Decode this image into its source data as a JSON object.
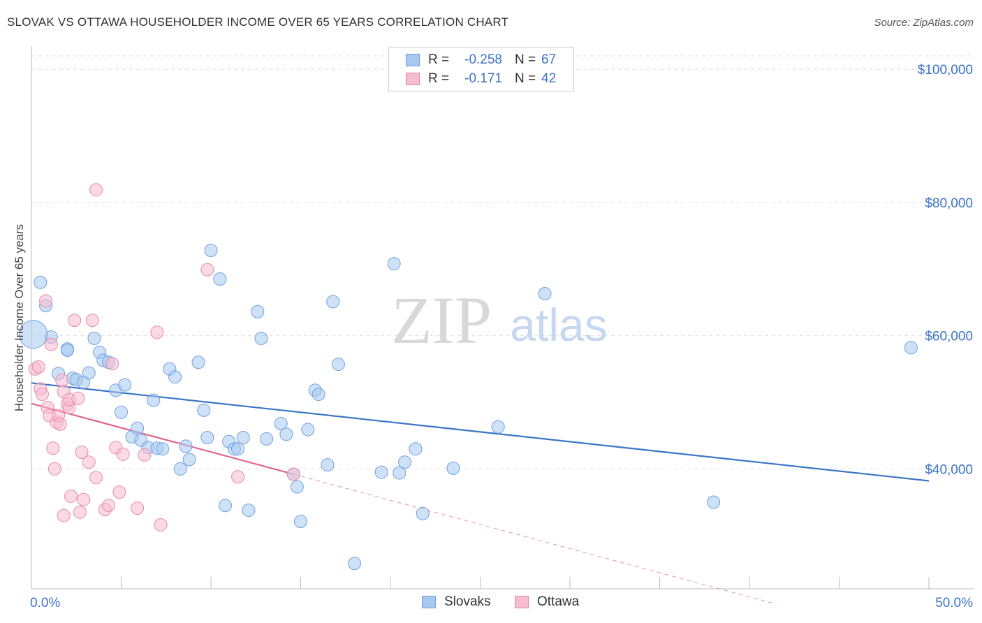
{
  "title": "SLOVAK VS OTTAWA HOUSEHOLDER INCOME OVER 65 YEARS CORRELATION CHART",
  "source": "Source: ZipAtlas.com",
  "watermark": {
    "zip": "ZIP",
    "atlas": "atlas"
  },
  "legend_top": [
    {
      "r_label": "R =",
      "r_value": "-0.258",
      "n_label": "N =",
      "n_value": "67",
      "color": "#a8c8f0",
      "border": "#6fa0e0"
    },
    {
      "r_label": "R =",
      "r_value": "-0.171",
      "n_label": "N =",
      "n_value": "42",
      "color": "#f7bcd0",
      "border": "#e889a8"
    }
  ],
  "legend_bottom": [
    {
      "label": "Slovaks",
      "color": "#a8c8f0",
      "border": "#6fa0e0"
    },
    {
      "label": "Ottawa",
      "color": "#f7bcd0",
      "border": "#e889a8"
    }
  ],
  "chart_data": {
    "type": "scatter",
    "title": "SLOVAK VS OTTAWA HOUSEHOLDER INCOME OVER 65 YEARS CORRELATION CHART",
    "xlabel": "",
    "ylabel": "Householder Income Over 65 years",
    "xlim": [
      0,
      50
    ],
    "ylim": [
      22000,
      102000
    ],
    "x_tick_labels": [
      "0.0%",
      "50.0%"
    ],
    "y_ticks": [
      40000,
      60000,
      80000,
      100000
    ],
    "y_tick_labels": [
      "$40,000",
      "$60,000",
      "$80,000",
      "$100,000"
    ],
    "grid": true,
    "legend_position": "top-center",
    "colors": {
      "Slovaks": "#3b74c6",
      "Ottawa": "#e0678f",
      "slovaks_fill": "#a8c8f0",
      "ottawa_fill": "#f7bcd0"
    },
    "series": [
      {
        "name": "Slovaks",
        "trend": {
          "x0": 0,
          "y0": 52900,
          "x1": 50,
          "y1": 38200
        },
        "points": [
          [
            0.5,
            68000
          ],
          [
            0.8,
            64500
          ],
          [
            1.1,
            59800
          ],
          [
            1.5,
            54300
          ],
          [
            2.0,
            58000
          ],
          [
            2.0,
            57800
          ],
          [
            2.3,
            53600
          ],
          [
            2.5,
            53400
          ],
          [
            2.9,
            53000
          ],
          [
            3.2,
            54400
          ],
          [
            3.5,
            59600
          ],
          [
            3.8,
            57500
          ],
          [
            4.0,
            56300
          ],
          [
            4.3,
            56000
          ],
          [
            4.7,
            51800
          ],
          [
            5.0,
            48500
          ],
          [
            5.2,
            52600
          ],
          [
            5.6,
            44800
          ],
          [
            5.9,
            46100
          ],
          [
            6.1,
            44300
          ],
          [
            6.5,
            43200
          ],
          [
            6.8,
            50300
          ],
          [
            7.0,
            43100
          ],
          [
            7.3,
            43000
          ],
          [
            7.7,
            55000
          ],
          [
            8.0,
            53800
          ],
          [
            8.3,
            40000
          ],
          [
            8.6,
            43400
          ],
          [
            8.8,
            41400
          ],
          [
            9.3,
            56000
          ],
          [
            9.6,
            48800
          ],
          [
            9.8,
            44700
          ],
          [
            10.0,
            72800
          ],
          [
            10.5,
            68500
          ],
          [
            10.8,
            34500
          ],
          [
            11.0,
            44100
          ],
          [
            11.3,
            43000
          ],
          [
            11.5,
            43000
          ],
          [
            11.8,
            44700
          ],
          [
            12.1,
            33800
          ],
          [
            12.6,
            63600
          ],
          [
            12.8,
            59600
          ],
          [
            13.1,
            44500
          ],
          [
            13.9,
            46800
          ],
          [
            14.2,
            45200
          ],
          [
            14.6,
            39200
          ],
          [
            14.8,
            37300
          ],
          [
            15.0,
            32100
          ],
          [
            15.4,
            45900
          ],
          [
            15.8,
            51800
          ],
          [
            16.0,
            51200
          ],
          [
            16.5,
            40600
          ],
          [
            16.8,
            65100
          ],
          [
            17.1,
            55700
          ],
          [
            18.0,
            25800
          ],
          [
            19.5,
            39500
          ],
          [
            20.2,
            70800
          ],
          [
            20.5,
            39400
          ],
          [
            20.8,
            41000
          ],
          [
            21.4,
            43000
          ],
          [
            21.8,
            33300
          ],
          [
            23.5,
            40100
          ],
          [
            26.0,
            46300
          ],
          [
            28.6,
            66300
          ],
          [
            38.0,
            35000
          ],
          [
            49.0,
            58200
          ],
          [
            0.1,
            60200
          ]
        ]
      },
      {
        "name": "Ottawa",
        "trend": {
          "x0": 0,
          "y0": 49800,
          "x1": 14.6,
          "y1": 39200,
          "dash_x1": 41.5,
          "dash_y1": 19700
        },
        "points": [
          [
            0.2,
            55000
          ],
          [
            0.4,
            55300
          ],
          [
            0.5,
            52000
          ],
          [
            0.6,
            51200
          ],
          [
            0.8,
            65200
          ],
          [
            0.9,
            49200
          ],
          [
            1.0,
            48000
          ],
          [
            1.1,
            58700
          ],
          [
            1.2,
            43100
          ],
          [
            1.3,
            40000
          ],
          [
            1.4,
            47000
          ],
          [
            1.5,
            48000
          ],
          [
            1.6,
            46700
          ],
          [
            1.7,
            53300
          ],
          [
            1.8,
            51600
          ],
          [
            1.8,
            33000
          ],
          [
            2.0,
            49700
          ],
          [
            2.1,
            49200
          ],
          [
            2.1,
            50400
          ],
          [
            2.2,
            35900
          ],
          [
            2.4,
            62300
          ],
          [
            2.6,
            50600
          ],
          [
            2.7,
            33500
          ],
          [
            2.8,
            42500
          ],
          [
            2.9,
            35400
          ],
          [
            3.2,
            41000
          ],
          [
            3.4,
            62300
          ],
          [
            3.6,
            81900
          ],
          [
            3.6,
            38700
          ],
          [
            4.1,
            33900
          ],
          [
            4.3,
            34500
          ],
          [
            4.5,
            55800
          ],
          [
            4.7,
            43200
          ],
          [
            4.9,
            36500
          ],
          [
            5.1,
            42200
          ],
          [
            5.9,
            34100
          ],
          [
            6.3,
            42100
          ],
          [
            7.0,
            60500
          ],
          [
            7.2,
            31600
          ],
          [
            9.8,
            69900
          ],
          [
            11.5,
            38800
          ],
          [
            14.6,
            39200
          ]
        ]
      }
    ]
  }
}
